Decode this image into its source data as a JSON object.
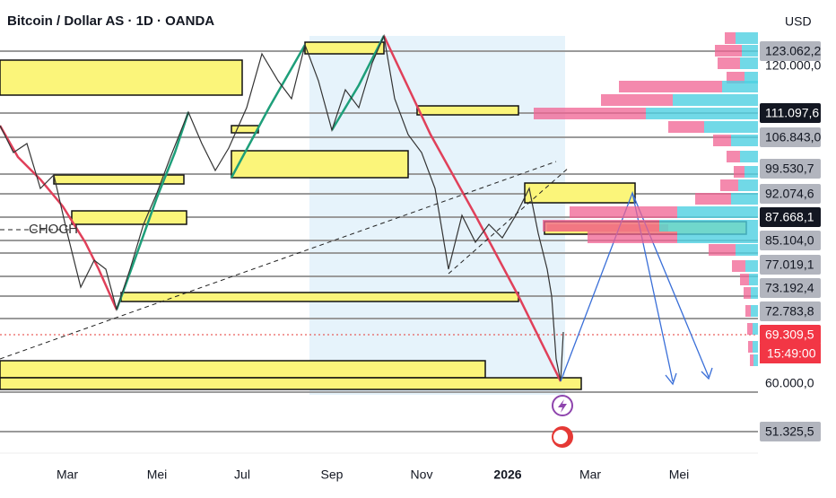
{
  "header": {
    "title": "Bitcoin / Dollar AS · 1D · OANDA",
    "currency": "USD"
  },
  "price_axis": {
    "labels": [
      "123.062,2",
      "120.000,0",
      "111.097,6",
      "106.843,0",
      "99.530,7",
      "92.074,6",
      "87.668,1",
      "85.104,0",
      "77.019,1",
      "73.192,4",
      "72.783,8",
      "69.309,5",
      "60.000,0",
      "51.325,5"
    ]
  },
  "time_axis": {
    "labels": [
      "Mar",
      "Mei",
      "Jul",
      "Sep",
      "Nov",
      "2026",
      "Mar",
      "Mei"
    ]
  },
  "annotations": {
    "choch": "CHOCH",
    "countdown": "15:49:00"
  }
}
